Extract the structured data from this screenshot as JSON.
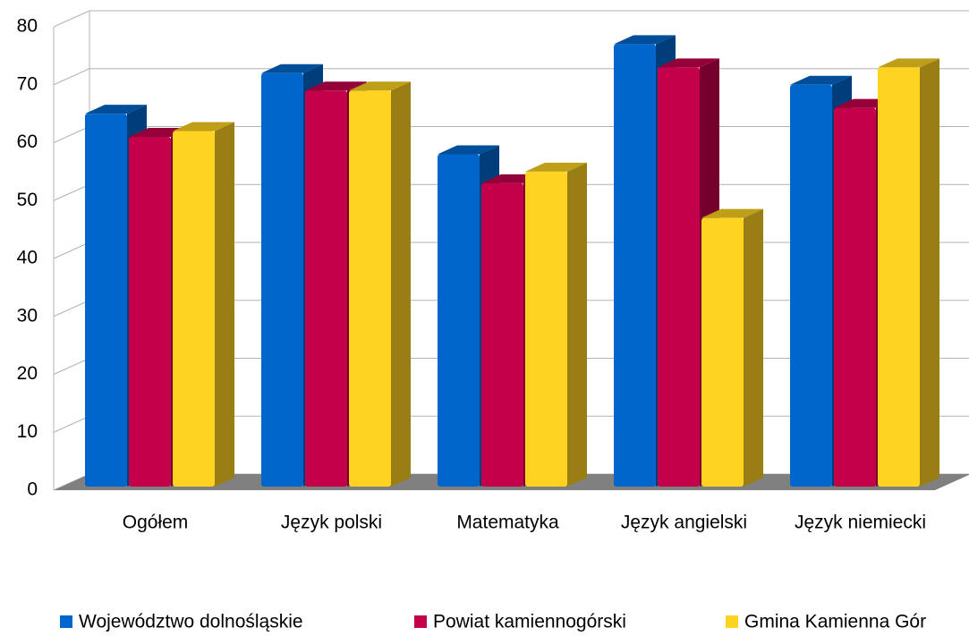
{
  "chart_data": {
    "type": "bar3d",
    "categories": [
      "Ogółem",
      "Język polski",
      "Matematyka",
      "Język angielski",
      "Język niemiecki"
    ],
    "series": [
      {
        "name": "Województwo dolnośląskie",
        "color": "#0066cc",
        "values": [
          65,
          72,
          58,
          77,
          70
        ]
      },
      {
        "name": "Powiat kamiennogórski",
        "color": "#c5004b",
        "values": [
          61,
          69,
          53,
          73,
          66
        ]
      },
      {
        "name": "Gmina Kamienna Gór",
        "color": "#ffd320",
        "values": [
          62,
          69,
          55,
          47,
          73
        ]
      }
    ],
    "ylim": [
      0,
      80
    ],
    "yticks": [
      0,
      10,
      20,
      30,
      40,
      50,
      60,
      70,
      80
    ],
    "grid": true,
    "legend": "bottom"
  }
}
